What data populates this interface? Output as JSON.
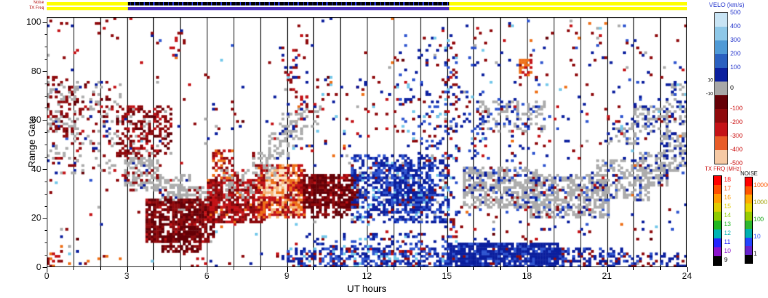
{
  "strips": {
    "noise_label": "Noise",
    "txfreq_label": "TX Freq",
    "noise": {
      "segments": [
        {
          "from": 0,
          "to": 3.05,
          "style": "solid",
          "color": "#ffff00"
        },
        {
          "from": 3.05,
          "to": 15.1,
          "style": "speckled",
          "color": "#000000",
          "speckle_color": "#2838e8"
        },
        {
          "from": 15.1,
          "to": 24,
          "style": "solid",
          "color": "#ffff00"
        }
      ]
    },
    "txfreq": {
      "segments": [
        {
          "from": 0,
          "to": 3.05,
          "style": "solid",
          "color": "#ffff00"
        },
        {
          "from": 3.05,
          "to": 15.1,
          "style": "solid",
          "color": "#4a2bbd"
        },
        {
          "from": 15.1,
          "to": 24,
          "style": "solid",
          "color": "#ffff00"
        }
      ]
    }
  },
  "axes": {
    "x": {
      "label": "UT hours",
      "min": 0,
      "max": 24,
      "ticks": [
        "0",
        "3",
        "6",
        "9",
        "12",
        "15",
        "18",
        "21",
        "24"
      ]
    },
    "y": {
      "label": "Range Gate",
      "min": 0,
      "max": 102,
      "ticks": [
        "0",
        "20",
        "40",
        "60",
        "80",
        "100"
      ]
    }
  },
  "legends": {
    "velocity": {
      "title": "VELO (km/s)",
      "title_color": "#2233cc",
      "segments": [
        "#c8e4f4",
        "#8ec8e8",
        "#4f9ad6",
        "#2a60c0",
        "#0b1f9e",
        "#a8a8a8",
        "#650007",
        "#8f0a0d",
        "#c41317",
        "#e85c28",
        "#f6c9a4"
      ],
      "ticks": [
        {
          "label": "500",
          "color": "#2233cc"
        },
        {
          "label": "400",
          "color": "#2233cc"
        },
        {
          "label": "300",
          "color": "#2233cc"
        },
        {
          "label": "200",
          "color": "#2233cc"
        },
        {
          "label": "100",
          "color": "#2233cc"
        },
        {
          "label": "0",
          "color": "#000000"
        },
        {
          "label": "-100",
          "color": "#cc1111"
        },
        {
          "label": "-200",
          "color": "#cc1111"
        },
        {
          "label": "-300",
          "color": "#cc1111"
        },
        {
          "label": "-400",
          "color": "#cc1111"
        },
        {
          "label": "-500",
          "color": "#cc1111"
        }
      ],
      "inner_labels": [
        "10",
        "-10"
      ]
    },
    "tx_freq": {
      "title": "TX FRQ (MHz)",
      "title_color": "#cc1111",
      "items": [
        {
          "label": "18",
          "color": "#ff0000"
        },
        {
          "label": "17",
          "color": "#ff4d00"
        },
        {
          "label": "16",
          "color": "#ff9900"
        },
        {
          "label": "15",
          "color": "#e0cc00"
        },
        {
          "label": "14",
          "color": "#8fcc00"
        },
        {
          "label": "13",
          "color": "#1fb81f"
        },
        {
          "label": "12",
          "color": "#00b4b4"
        },
        {
          "label": "11",
          "color": "#2424ff"
        },
        {
          "label": "10",
          "color": "#8c14cc"
        },
        {
          "label": "9",
          "color": "#000000"
        }
      ]
    },
    "noise": {
      "title": "NOISE",
      "title_color": "#000000",
      "segments": [
        "#ff0000",
        "#ff5500",
        "#ffaa00",
        "#e6d800",
        "#98cc00",
        "#2eb82e",
        "#00b0b0",
        "#2244ff",
        "#6622cc",
        "#000000"
      ],
      "ticks": [
        {
          "label": "10000",
          "color": "#ff5500"
        },
        {
          "label": "1000",
          "color": "#a0a000"
        },
        {
          "label": "100",
          "color": "#1fa81f"
        },
        {
          "label": "10",
          "color": "#2244ff"
        },
        {
          "label": "1",
          "color": "#000000"
        }
      ]
    }
  },
  "chart_data": {
    "type": "heatmap",
    "description": "SuperDARN-style range-time velocity plot: scattered colored cells (blue = positive velocity, red = negative velocity, gray = ground scatter) on white, with vertical gridlines each UT hour.",
    "x": {
      "label": "UT hours",
      "range": [
        0,
        24
      ],
      "gridline_interval_hours": 1
    },
    "y": {
      "label": "Range Gate",
      "range": [
        0,
        102
      ]
    },
    "t_step": 0.1,
    "seed": 11,
    "palette": {
      "maroon": "#650007",
      "darkred": "#8f0a0d",
      "red": "#c41317",
      "orange": "#ee7018",
      "peach": "#f5b87e",
      "cream": "#fbe9d2",
      "navy": "#0b1f9e",
      "medblue": "#2f55cf",
      "ltblue": "#5b97dd",
      "cyan": "#74c8ea",
      "gray": "#acacac"
    },
    "features": [
      {
        "t": [
          0,
          24
        ],
        "g": [
          0,
          102
        ],
        "d": 0.012,
        "c": {
          "navy": 0.22,
          "medblue": 0.12,
          "cyan": 0.08,
          "darkred": 0.25,
          "red": 0.12,
          "orange": 0.05,
          "gray": 0.12,
          "maroon": 0.04
        }
      },
      {
        "t": [
          0,
          2.8
        ],
        "g": [
          38,
          76
        ],
        "d": 0.2,
        "c": {
          "gray": 0.5,
          "darkred": 0.28,
          "maroon": 0.08,
          "navy": 0.08,
          "red": 0.06
        }
      },
      {
        "t": [
          0,
          1.1
        ],
        "g": [
          55,
          78
        ],
        "d": 0.28,
        "c": {
          "darkred": 0.5,
          "gray": 0.35,
          "maroon": 0.15
        }
      },
      {
        "t": [
          0,
          0.6
        ],
        "g": [
          0,
          6
        ],
        "d": 0.35,
        "c": {
          "orange": 0.3,
          "darkred": 0.4,
          "red": 0.3
        }
      },
      {
        "t": [
          0.8,
          3
        ],
        "g": [
          0,
          5
        ],
        "d": 0.08,
        "c": {
          "darkred": 0.5,
          "navy": 0.3,
          "orange": 0.2
        }
      },
      {
        "t": [
          2.6,
          4.6
        ],
        "g": [
          45,
          66
        ],
        "d": 0.38,
        "c": {
          "darkred": 0.55,
          "maroon": 0.2,
          "red": 0.15,
          "gray": 0.1
        }
      },
      {
        "t": [
          2.9,
          4.3
        ],
        "g": [
          31,
          45
        ],
        "d": 0.5,
        "c": {
          "gray": 0.8,
          "darkred": 0.15,
          "navy": 0.05
        }
      },
      {
        "t": [
          3.9,
          5.3
        ],
        "g": [
          26,
          38
        ],
        "d": 0.5,
        "c": {
          "gray": 0.85,
          "darkred": 0.1,
          "navy": 0.05
        }
      },
      {
        "t": [
          4.9,
          6.4
        ],
        "g": [
          21,
          33
        ],
        "d": 0.45,
        "c": {
          "gray": 0.85,
          "darkred": 0.15
        }
      },
      {
        "t": [
          3.7,
          6.2
        ],
        "g": [
          10,
          28
        ],
        "d": 0.78,
        "c": {
          "maroon": 0.55,
          "darkred": 0.4,
          "red": 0.05
        }
      },
      {
        "t": [
          4.3,
          5.7
        ],
        "g": [
          6,
          14
        ],
        "d": 0.45,
        "c": {
          "maroon": 0.6,
          "darkred": 0.4
        }
      },
      {
        "t": [
          6.0,
          8.1
        ],
        "g": [
          18,
          36
        ],
        "d": 0.7,
        "c": {
          "darkred": 0.45,
          "red": 0.4,
          "maroon": 0.1,
          "orange": 0.05
        }
      },
      {
        "t": [
          6.2,
          6.9
        ],
        "g": [
          36,
          48
        ],
        "d": 0.5,
        "c": {
          "orange": 0.45,
          "red": 0.3,
          "darkred": 0.25
        }
      },
      {
        "t": [
          6.5,
          7.8
        ],
        "g": [
          28,
          40
        ],
        "d": 0.3,
        "c": {
          "gray": 0.6,
          "red": 0.2,
          "darkred": 0.2
        }
      },
      {
        "t": [
          7.9,
          9.6
        ],
        "g": [
          20,
          42
        ],
        "d": 0.8,
        "c": {
          "red": 0.4,
          "orange": 0.3,
          "darkred": 0.2,
          "peach": 0.1
        }
      },
      {
        "t": [
          8.2,
          8.9
        ],
        "g": [
          29,
          40
        ],
        "d": 0.85,
        "c": {
          "cream": 0.55,
          "peach": 0.3,
          "orange": 0.15
        }
      },
      {
        "t": [
          9.6,
          11.6
        ],
        "g": [
          24,
          38
        ],
        "d": 0.82,
        "c": {
          "maroon": 0.6,
          "darkred": 0.35,
          "red": 0.05
        }
      },
      {
        "t": [
          9.9,
          10.5
        ],
        "g": [
          20,
          26
        ],
        "d": 0.6,
        "c": {
          "maroon": 0.7,
          "darkred": 0.3
        }
      },
      {
        "t": [
          10.7,
          11.4
        ],
        "g": [
          20,
          26
        ],
        "d": 0.6,
        "c": {
          "maroon": 0.7,
          "darkred": 0.3
        }
      },
      {
        "t": [
          7.7,
          8.5
        ],
        "g": [
          36,
          47
        ],
        "d": 0.4,
        "c": {
          "gray": 0.9,
          "darkred": 0.1
        }
      },
      {
        "t": [
          8.3,
          9.0
        ],
        "g": [
          44,
          55
        ],
        "d": 0.4,
        "c": {
          "gray": 0.9,
          "navy": 0.1
        }
      },
      {
        "t": [
          8.8,
          9.5
        ],
        "g": [
          52,
          63
        ],
        "d": 0.35,
        "c": {
          "gray": 0.85,
          "navy": 0.15
        }
      },
      {
        "t": [
          9.3,
          10.3
        ],
        "g": [
          57,
          66
        ],
        "d": 0.2,
        "c": {
          "gray": 0.6,
          "navy": 0.25,
          "darkred": 0.15
        }
      },
      {
        "t": [
          9.0,
          12.2
        ],
        "g": [
          45,
          78
        ],
        "d": 0.05,
        "c": {
          "darkred": 0.35,
          "red": 0.15,
          "navy": 0.3,
          "cyan": 0.1,
          "orange": 0.1
        }
      },
      {
        "t": [
          9.2,
          9.7
        ],
        "g": [
          60,
          95
        ],
        "d": 0.1,
        "c": {
          "darkred": 0.5,
          "red": 0.2,
          "navy": 0.3
        }
      },
      {
        "t": [
          5.9,
          7.2
        ],
        "g": [
          50,
          70
        ],
        "d": 0.06,
        "c": {
          "darkred": 0.4,
          "gray": 0.35,
          "navy": 0.25
        }
      },
      {
        "t": [
          4.5,
          5.1
        ],
        "g": [
          86,
          97
        ],
        "d": 0.12,
        "c": {
          "darkred": 0.6,
          "red": 0.2,
          "navy": 0.2
        }
      },
      {
        "t": [
          8.7,
          9.3
        ],
        "g": [
          76,
          92
        ],
        "d": 0.1,
        "c": {
          "darkred": 0.5,
          "red": 0.3,
          "navy": 0.2
        }
      },
      {
        "t": [
          0,
          3
        ],
        "g": [
          80,
          102
        ],
        "d": 0.02,
        "c": {
          "darkred": 0.4,
          "navy": 0.3,
          "red": 0.15,
          "cyan": 0.15
        }
      },
      {
        "t": [
          5,
          9
        ],
        "g": [
          0,
          6
        ],
        "d": 0.07,
        "c": {
          "darkred": 0.4,
          "navy": 0.4,
          "red": 0.2
        }
      },
      {
        "t": [
          11.4,
          15.0
        ],
        "g": [
          18,
          46
        ],
        "d": 0.4,
        "c": {
          "navy": 0.55,
          "medblue": 0.28,
          "darkred": 0.07,
          "cyan": 0.05,
          "gray": 0.05
        }
      },
      {
        "t": [
          12.3,
          14.4
        ],
        "g": [
          22,
          42
        ],
        "d": 0.6,
        "c": {
          "navy": 0.6,
          "medblue": 0.3,
          "cyan": 0.05,
          "darkred": 0.05
        }
      },
      {
        "t": [
          12.1,
          13.7
        ],
        "g": [
          55,
          76
        ],
        "d": 0.07,
        "c": {
          "darkred": 0.45,
          "red": 0.2,
          "navy": 0.25,
          "cyan": 0.1
        }
      },
      {
        "t": [
          13.2,
          14.7
        ],
        "g": [
          48,
          96
        ],
        "d": 0.07,
        "c": {
          "navy": 0.5,
          "medblue": 0.25,
          "darkred": 0.15,
          "cyan": 0.1
        }
      },
      {
        "t": [
          13.9,
          16.3
        ],
        "g": [
          42,
          72
        ],
        "d": 0.11,
        "c": {
          "navy": 0.45,
          "medblue": 0.3,
          "cyan": 0.1,
          "darkred": 0.15
        }
      },
      {
        "t": [
          9.0,
          15.0
        ],
        "g": [
          0,
          8
        ],
        "d": 0.55,
        "c": {
          "navy": 0.45,
          "medblue": 0.3,
          "darkred": 0.1,
          "red": 0.05,
          "cyan": 0.1
        }
      },
      {
        "t": [
          10.0,
          15.0
        ],
        "g": [
          8,
          14
        ],
        "d": 0.22,
        "c": {
          "navy": 0.5,
          "medblue": 0.3,
          "darkred": 0.1,
          "cyan": 0.1
        }
      },
      {
        "t": [
          14.9,
          15.35
        ],
        "g": [
          10,
          96
        ],
        "d": 0.14,
        "c": {
          "navy": 0.4,
          "cyan": 0.15,
          "darkred": 0.25,
          "red": 0.1,
          "medblue": 0.1
        }
      },
      {
        "t": [
          15.0,
          19.2
        ],
        "g": [
          0,
          10
        ],
        "d": 0.88,
        "c": {
          "navy": 0.78,
          "medblue": 0.18,
          "darkred": 0.04
        }
      },
      {
        "t": [
          19.2,
          21.6
        ],
        "g": [
          0,
          8
        ],
        "d": 0.5,
        "c": {
          "navy": 0.7,
          "medblue": 0.2,
          "darkred": 0.1
        }
      },
      {
        "t": [
          21.6,
          24
        ],
        "g": [
          0,
          6
        ],
        "d": 0.3,
        "c": {
          "navy": 0.65,
          "medblue": 0.2,
          "darkred": 0.15
        }
      },
      {
        "t": [
          15.6,
          18.4
        ],
        "g": [
          24,
          41
        ],
        "d": 0.6,
        "c": {
          "gray": 0.8,
          "navy": 0.1,
          "medblue": 0.07,
          "darkred": 0.03
        }
      },
      {
        "t": [
          18.1,
          21.1
        ],
        "g": [
          20,
          38
        ],
        "d": 0.55,
        "c": {
          "gray": 0.78,
          "navy": 0.12,
          "medblue": 0.07,
          "darkred": 0.03
        }
      },
      {
        "t": [
          20.6,
          22.6
        ],
        "g": [
          27,
          44
        ],
        "d": 0.42,
        "c": {
          "gray": 0.75,
          "navy": 0.15,
          "medblue": 0.1
        }
      },
      {
        "t": [
          22.2,
          23.3
        ],
        "g": [
          33,
          47
        ],
        "d": 0.45,
        "c": {
          "gray": 0.8,
          "navy": 0.15,
          "darkred": 0.05
        }
      },
      {
        "t": [
          23.0,
          24
        ],
        "g": [
          39,
          55
        ],
        "d": 0.45,
        "c": {
          "gray": 0.8,
          "navy": 0.2
        }
      },
      {
        "t": [
          16.2,
          18.7
        ],
        "g": [
          55,
          68
        ],
        "d": 0.32,
        "c": {
          "gray": 0.7,
          "medblue": 0.15,
          "navy": 0.15
        }
      },
      {
        "t": [
          21.0,
          22.2
        ],
        "g": [
          50,
          59
        ],
        "d": 0.3,
        "c": {
          "gray": 0.65,
          "navy": 0.2,
          "darkred": 0.1,
          "cyan": 0.05
        }
      },
      {
        "t": [
          22.0,
          23.4
        ],
        "g": [
          55,
          66
        ],
        "d": 0.3,
        "c": {
          "gray": 0.65,
          "navy": 0.25,
          "darkred": 0.1
        }
      },
      {
        "t": [
          23.2,
          24
        ],
        "g": [
          58,
          76
        ],
        "d": 0.3,
        "c": {
          "gray": 0.55,
          "navy": 0.3,
          "cyan": 0.15
        }
      },
      {
        "t": [
          15.0,
          24
        ],
        "g": [
          10,
          100
        ],
        "d": 0.03,
        "c": {
          "navy": 0.35,
          "medblue": 0.2,
          "cyan": 0.08,
          "darkred": 0.2,
          "red": 0.08,
          "orange": 0.04,
          "gray": 0.05
        }
      },
      {
        "t": [
          17.7,
          18.15
        ],
        "g": [
          78,
          85
        ],
        "d": 0.6,
        "c": {
          "orange": 0.5,
          "red": 0.3,
          "darkred": 0.2
        }
      }
    ]
  }
}
